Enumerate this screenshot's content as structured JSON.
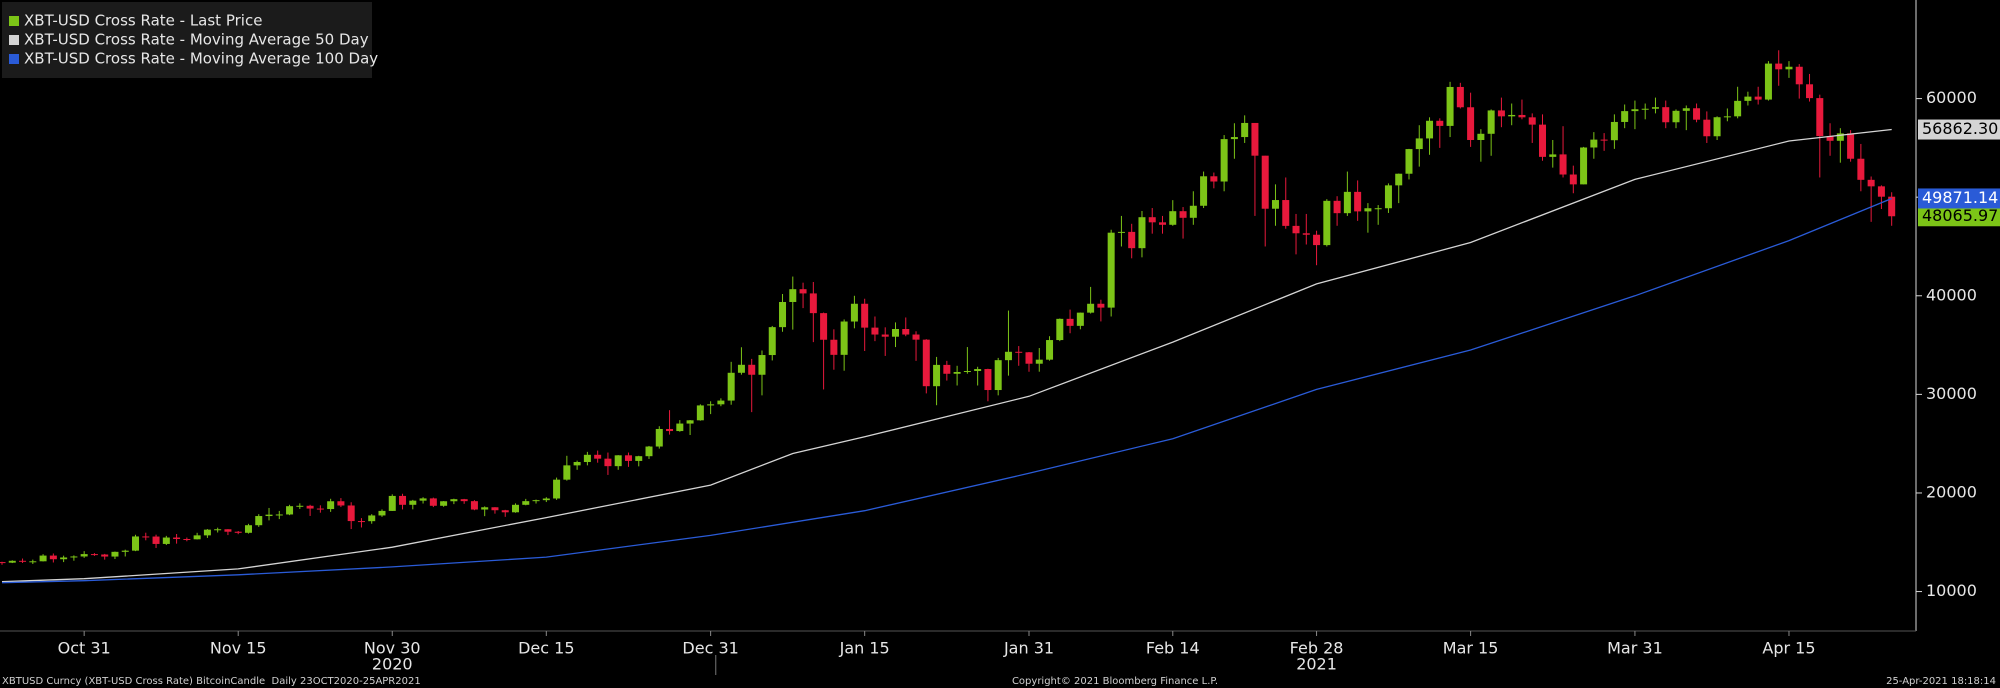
{
  "chart_data": {
    "type": "candlestick",
    "categories": [
      "2020-10-23",
      "2020-10-24",
      "2020-10-25",
      "2020-10-26",
      "2020-10-27",
      "2020-10-28",
      "2020-10-29",
      "2020-10-30",
      "2020-10-31",
      "2020-11-01",
      "2020-11-02",
      "2020-11-03",
      "2020-11-04",
      "2020-11-05",
      "2020-11-06",
      "2020-11-07",
      "2020-11-08",
      "2020-11-09",
      "2020-11-10",
      "2020-11-11",
      "2020-11-12",
      "2020-11-13",
      "2020-11-14",
      "2020-11-15",
      "2020-11-16",
      "2020-11-17",
      "2020-11-18",
      "2020-11-19",
      "2020-11-20",
      "2020-11-21",
      "2020-11-22",
      "2020-11-23",
      "2020-11-24",
      "2020-11-25",
      "2020-11-26",
      "2020-11-27",
      "2020-11-28",
      "2020-11-29",
      "2020-11-30",
      "2020-12-01",
      "2020-12-02",
      "2020-12-03",
      "2020-12-04",
      "2020-12-05",
      "2020-12-06",
      "2020-12-07",
      "2020-12-08",
      "2020-12-09",
      "2020-12-10",
      "2020-12-11",
      "2020-12-12",
      "2020-12-13",
      "2020-12-14",
      "2020-12-15",
      "2020-12-16",
      "2020-12-17",
      "2020-12-18",
      "2020-12-19",
      "2020-12-20",
      "2020-12-21",
      "2020-12-22",
      "2020-12-23",
      "2020-12-24",
      "2020-12-25",
      "2020-12-26",
      "2020-12-27",
      "2020-12-28",
      "2020-12-29",
      "2020-12-30",
      "2020-12-31",
      "2021-01-01",
      "2021-01-02",
      "2021-01-03",
      "2021-01-04",
      "2021-01-05",
      "2021-01-06",
      "2021-01-07",
      "2021-01-08",
      "2021-01-09",
      "2021-01-10",
      "2021-01-11",
      "2021-01-12",
      "2021-01-13",
      "2021-01-14",
      "2021-01-15",
      "2021-01-16",
      "2021-01-17",
      "2021-01-18",
      "2021-01-19",
      "2021-01-20",
      "2021-01-21",
      "2021-01-22",
      "2021-01-23",
      "2021-01-24",
      "2021-01-25",
      "2021-01-26",
      "2021-01-27",
      "2021-01-28",
      "2021-01-29",
      "2021-01-30",
      "2021-01-31",
      "2021-02-01",
      "2021-02-02",
      "2021-02-03",
      "2021-02-04",
      "2021-02-05",
      "2021-02-06",
      "2021-02-07",
      "2021-02-08",
      "2021-02-09",
      "2021-02-10",
      "2021-02-11",
      "2021-02-12",
      "2021-02-13",
      "2021-02-14",
      "2021-02-15",
      "2021-02-16",
      "2021-02-17",
      "2021-02-18",
      "2021-02-19",
      "2021-02-20",
      "2021-02-21",
      "2021-02-22",
      "2021-02-23",
      "2021-02-24",
      "2021-02-25",
      "2021-02-26",
      "2021-02-27",
      "2021-02-28",
      "2021-03-01",
      "2021-03-02",
      "2021-03-03",
      "2021-03-04",
      "2021-03-05",
      "2021-03-06",
      "2021-03-07",
      "2021-03-08",
      "2021-03-09",
      "2021-03-10",
      "2021-03-11",
      "2021-03-12",
      "2021-03-13",
      "2021-03-14",
      "2021-03-15",
      "2021-03-16",
      "2021-03-17",
      "2021-03-18",
      "2021-03-19",
      "2021-03-20",
      "2021-03-21",
      "2021-03-22",
      "2021-03-23",
      "2021-03-24",
      "2021-03-25",
      "2021-03-26",
      "2021-03-27",
      "2021-03-28",
      "2021-03-29",
      "2021-03-30",
      "2021-03-31",
      "2021-04-01",
      "2021-04-02",
      "2021-04-03",
      "2021-04-04",
      "2021-04-05",
      "2021-04-06",
      "2021-04-07",
      "2021-04-08",
      "2021-04-09",
      "2021-04-10",
      "2021-04-11",
      "2021-04-12",
      "2021-04-13",
      "2021-04-14",
      "2021-04-15",
      "2021-04-16",
      "2021-04-17",
      "2021-04-18",
      "2021-04-19",
      "2021-04-20",
      "2021-04-21",
      "2021-04-22",
      "2021-04-23",
      "2021-04-24",
      "2021-04-25"
    ],
    "series": [
      {
        "name": "XBT-USD Cross Rate - Last Price",
        "type": "candlestick",
        "color": "#7cc417",
        "down_color": "#e8193c",
        "open": [
          12990,
          12930,
          13120,
          13030,
          13070,
          13650,
          13280,
          13460,
          13560,
          13800,
          13760,
          13550,
          14030,
          14150,
          15590,
          15580,
          14830,
          15480,
          15330,
          15300,
          15700,
          16280,
          16320,
          16070,
          15960,
          16730,
          17660,
          17800,
          17820,
          18660,
          18700,
          18420,
          18370,
          19160,
          18730,
          17150,
          17140,
          17720,
          18180,
          19700,
          18800,
          19220,
          19450,
          18700,
          19160,
          19370,
          19170,
          18320,
          18550,
          18250,
          18040,
          18800,
          19170,
          19270,
          19440,
          21350,
          22800,
          23140,
          23870,
          23480,
          22720,
          23820,
          23250,
          23730,
          24710,
          26490,
          26280,
          27040,
          27370,
          28880,
          28990,
          29370,
          32190,
          33000,
          31990,
          33990,
          36820,
          39370,
          40670,
          40240,
          38240,
          35540,
          34010,
          37390,
          39190,
          36770,
          36070,
          35850,
          36630,
          36070,
          35550,
          30830,
          32990,
          32090,
          32270,
          32370,
          32570,
          30440,
          33470,
          34320,
          34270,
          33110,
          33520,
          35510,
          37660,
          36950,
          38290,
          39190,
          38800,
          46400,
          46480,
          44830,
          47970,
          47450,
          47200,
          48580,
          47910,
          49130,
          52120,
          51590,
          55890,
          56100,
          57530,
          54210,
          48830,
          49710,
          47090,
          46340,
          46190,
          45140,
          49630,
          48380,
          50540,
          48560,
          48880,
          48880,
          51200,
          52380,
          54880,
          55960,
          57750,
          57230,
          61180,
          59120,
          55800,
          56430,
          58800,
          58200,
          58340,
          58100,
          57360,
          54090,
          54340,
          52300,
          51300,
          55040,
          55840,
          55780,
          57630,
          58730,
          58920,
          58970,
          59130,
          57600,
          58760,
          59020,
          57860,
          56180,
          58110,
          58200,
          59770,
          60200,
          59900,
          63550,
          62970,
          63230,
          61450,
          60050,
          56200,
          55720,
          56470,
          53900,
          51760,
          51100,
          50050
        ],
        "high": [
          13020,
          13170,
          13350,
          13240,
          13790,
          13860,
          13640,
          13670,
          14100,
          13900,
          13820,
          14060,
          14250,
          15760,
          15970,
          15770,
          15650,
          15840,
          15480,
          15960,
          16340,
          16480,
          16330,
          16140,
          16870,
          17850,
          18480,
          18180,
          18800,
          18950,
          18800,
          18750,
          19410,
          19480,
          19060,
          17450,
          17850,
          18330,
          19860,
          19920,
          19300,
          19570,
          19530,
          19180,
          19420,
          19400,
          19270,
          18640,
          18560,
          18290,
          18950,
          19400,
          19330,
          19570,
          21560,
          23770,
          23280,
          24170,
          24300,
          24100,
          23840,
          24100,
          23770,
          24770,
          26770,
          28400,
          27390,
          27400,
          28990,
          29300,
          29600,
          33300,
          34780,
          33600,
          34450,
          36940,
          40180,
          41950,
          41330,
          41400,
          38300,
          36600,
          37600,
          40000,
          39700,
          37900,
          36800,
          37300,
          37800,
          36400,
          35600,
          33800,
          33400,
          32900,
          34800,
          32800,
          32600,
          33700,
          38500,
          34900,
          34300,
          34700,
          35900,
          37700,
          38600,
          38300,
          40900,
          39600,
          46700,
          48100,
          47300,
          48600,
          48900,
          48100,
          49700,
          49000,
          50600,
          52600,
          52500,
          56300,
          57500,
          58300,
          57500,
          54200,
          51300,
          52000,
          48300,
          48300,
          46600,
          49800,
          50100,
          52600,
          51700,
          49400,
          49200,
          51400,
          52400,
          54900,
          57300,
          58100,
          58000,
          61700,
          61600,
          60600,
          56900,
          58900,
          60100,
          59500,
          59900,
          58500,
          58400,
          55800,
          57200,
          53200,
          55100,
          56600,
          56500,
          58400,
          59400,
          59800,
          59500,
          60100,
          59800,
          58900,
          59300,
          59500,
          58700,
          58200,
          59000,
          61200,
          60700,
          61200,
          63800,
          64900,
          63800,
          63500,
          62500,
          60400,
          57500,
          57000,
          56800,
          55400,
          52100,
          51200,
          50500
        ],
        "low": [
          12720,
          12890,
          12900,
          12800,
          13050,
          12950,
          12990,
          13130,
          13420,
          13620,
          13240,
          13300,
          13560,
          14100,
          15200,
          14420,
          14720,
          14860,
          15100,
          15280,
          15440,
          15990,
          15730,
          15820,
          15880,
          16560,
          17220,
          17350,
          17750,
          18380,
          17670,
          18000,
          18080,
          18570,
          16340,
          16500,
          16880,
          17580,
          18180,
          18330,
          18340,
          18930,
          18570,
          18600,
          18870,
          18900,
          18250,
          17650,
          17900,
          17580,
          18000,
          18750,
          18930,
          19080,
          19300,
          21250,
          22350,
          22800,
          23070,
          21830,
          22350,
          22650,
          22700,
          23450,
          24500,
          25920,
          26210,
          25880,
          27330,
          28000,
          28800,
          28950,
          32000,
          28200,
          29900,
          33440,
          36350,
          36570,
          38750,
          35300,
          30500,
          32500,
          32400,
          36700,
          34400,
          35400,
          33900,
          34800,
          35900,
          33400,
          30100,
          28900,
          31400,
          30900,
          32100,
          30900,
          29300,
          29900,
          31900,
          32900,
          32300,
          32300,
          33420,
          35400,
          36200,
          36600,
          38200,
          37400,
          37900,
          45000,
          43800,
          43900,
          46300,
          46300,
          47100,
          45800,
          47200,
          48900,
          50900,
          50600,
          53900,
          55500,
          48100,
          45000,
          47100,
          46800,
          44200,
          45200,
          43100,
          45000,
          47100,
          48100,
          47600,
          46400,
          47200,
          48400,
          49400,
          51800,
          53100,
          54300,
          55000,
          56100,
          59000,
          55100,
          53600,
          54200,
          57100,
          57300,
          57900,
          55500,
          53700,
          53000,
          52000,
          50400,
          51300,
          53900,
          54700,
          54900,
          57000,
          56900,
          57900,
          58500,
          57000,
          57000,
          56800,
          57600,
          55500,
          55800,
          57700,
          58000,
          59300,
          59400,
          59800,
          61300,
          62100,
          60000,
          59700,
          52000,
          54200,
          53500,
          53600,
          50600,
          47500,
          48800,
          47100
        ],
        "close": [
          12930,
          13120,
          13030,
          13070,
          13650,
          13280,
          13460,
          13560,
          13800,
          13760,
          13550,
          14030,
          14150,
          15590,
          15580,
          14830,
          15480,
          15330,
          15300,
          15700,
          16280,
          16320,
          16070,
          15960,
          16730,
          17660,
          17800,
          17820,
          18660,
          18700,
          18420,
          18370,
          19160,
          18730,
          17150,
          17140,
          17720,
          18180,
          19700,
          18800,
          19220,
          19450,
          18700,
          19160,
          19370,
          19170,
          18320,
          18550,
          18250,
          18040,
          18800,
          19170,
          19270,
          19440,
          21350,
          22800,
          23140,
          23870,
          23480,
          22720,
          23820,
          23250,
          23730,
          24710,
          26490,
          26280,
          27040,
          27370,
          28880,
          28990,
          29370,
          32190,
          33000,
          31990,
          33990,
          36820,
          39370,
          40670,
          40240,
          38240,
          35540,
          34010,
          37390,
          39190,
          36770,
          36070,
          35850,
          36630,
          36070,
          35550,
          30830,
          32990,
          32090,
          32270,
          32370,
          32570,
          30440,
          33470,
          34320,
          34270,
          33110,
          33520,
          35510,
          37660,
          36950,
          38290,
          39190,
          38800,
          46400,
          46480,
          44830,
          47970,
          47450,
          47200,
          48580,
          47910,
          49130,
          52120,
          51590,
          55890,
          56100,
          57530,
          54210,
          48830,
          49710,
          47090,
          46340,
          46190,
          45140,
          49630,
          48380,
          50540,
          48560,
          48880,
          48880,
          51200,
          52380,
          54880,
          55960,
          57750,
          57230,
          61180,
          59120,
          55800,
          56430,
          58800,
          58200,
          58340,
          58100,
          57360,
          54090,
          54340,
          52300,
          51300,
          55040,
          55840,
          55780,
          57630,
          58730,
          58920,
          58970,
          59130,
          57600,
          58760,
          59020,
          57860,
          56180,
          58110,
          58200,
          59770,
          60200,
          59900,
          63550,
          62970,
          63230,
          61450,
          60050,
          56200,
          55720,
          56470,
          53900,
          51760,
          51100,
          50050,
          48065.97
        ],
        "end_label": {
          "value": 48065.97,
          "label": "48065.97"
        }
      },
      {
        "name": "XBT-USD Cross Rate - Moving Average 50 Day",
        "type": "line",
        "color": "#d4d4d4",
        "x": [
          "2020-10-23",
          "2020-10-31",
          "2020-11-15",
          "2020-11-30",
          "2020-12-15",
          "2020-12-31",
          "2021-01-08",
          "2021-01-15",
          "2021-01-31",
          "2021-02-14",
          "2021-02-28",
          "2021-03-15",
          "2021-03-31",
          "2021-04-15",
          "2021-04-25"
        ],
        "values": [
          11000,
          11300,
          12300,
          14500,
          17500,
          20800,
          24000,
          25700,
          29800,
          35300,
          41200,
          45400,
          51800,
          55700,
          56862.3
        ],
        "end_label": {
          "value": 56862.3,
          "label": "56862.30"
        }
      },
      {
        "name": "XBT-USD Cross Rate - Moving Average 100 Day",
        "type": "line",
        "color": "#2a5bd7",
        "x": [
          "2020-10-23",
          "2020-10-31",
          "2020-11-15",
          "2020-11-30",
          "2020-12-15",
          "2020-12-31",
          "2021-01-15",
          "2021-01-31",
          "2021-02-14",
          "2021-02-28",
          "2021-03-15",
          "2021-03-31",
          "2021-04-15",
          "2021-04-25"
        ],
        "values": [
          10900,
          11100,
          11700,
          12500,
          13500,
          15700,
          18200,
          22000,
          25500,
          30500,
          34500,
          40000,
          45600,
          49871.14
        ],
        "end_label": {
          "value": 49871.14,
          "label": "49871.14"
        }
      }
    ],
    "ylim": [
      6000,
      70000
    ],
    "yticks": [
      10000,
      20000,
      30000,
      40000,
      50000,
      60000
    ],
    "xticks": [
      {
        "value": "2020-10-31",
        "label": "Oct 31"
      },
      {
        "value": "2020-11-15",
        "label": "Nov 15"
      },
      {
        "value": "2020-11-30",
        "label": "Nov 30"
      },
      {
        "value": "2020-12-15",
        "label": "Dec 15"
      },
      {
        "value": "2020-12-31",
        "label": "Dec 31"
      },
      {
        "value": "2021-01-15",
        "label": "Jan 15"
      },
      {
        "value": "2021-01-31",
        "label": "Jan 31"
      },
      {
        "value": "2021-02-14",
        "label": "Feb 14"
      },
      {
        "value": "2021-02-28",
        "label": "Feb 28"
      },
      {
        "value": "2021-03-15",
        "label": "Mar 15"
      },
      {
        "value": "2021-03-31",
        "label": "Mar 31"
      },
      {
        "value": "2021-04-15",
        "label": "Apr 15"
      }
    ],
    "year_labels": [
      {
        "value": "2020-11-30",
        "label": "2020"
      },
      {
        "value": "2021-02-28",
        "label": "2021"
      }
    ],
    "legend": "top-left",
    "grid": false
  },
  "footer": {
    "security": "XBTUSD Curncy (XBT-USD Cross Rate) BitcoinCandle  Daily 23OCT2020-25APR2021",
    "copyright": "Copyright© 2021 Bloomberg Finance L.P.",
    "timestamp": "25-Apr-2021 18:18:14"
  }
}
